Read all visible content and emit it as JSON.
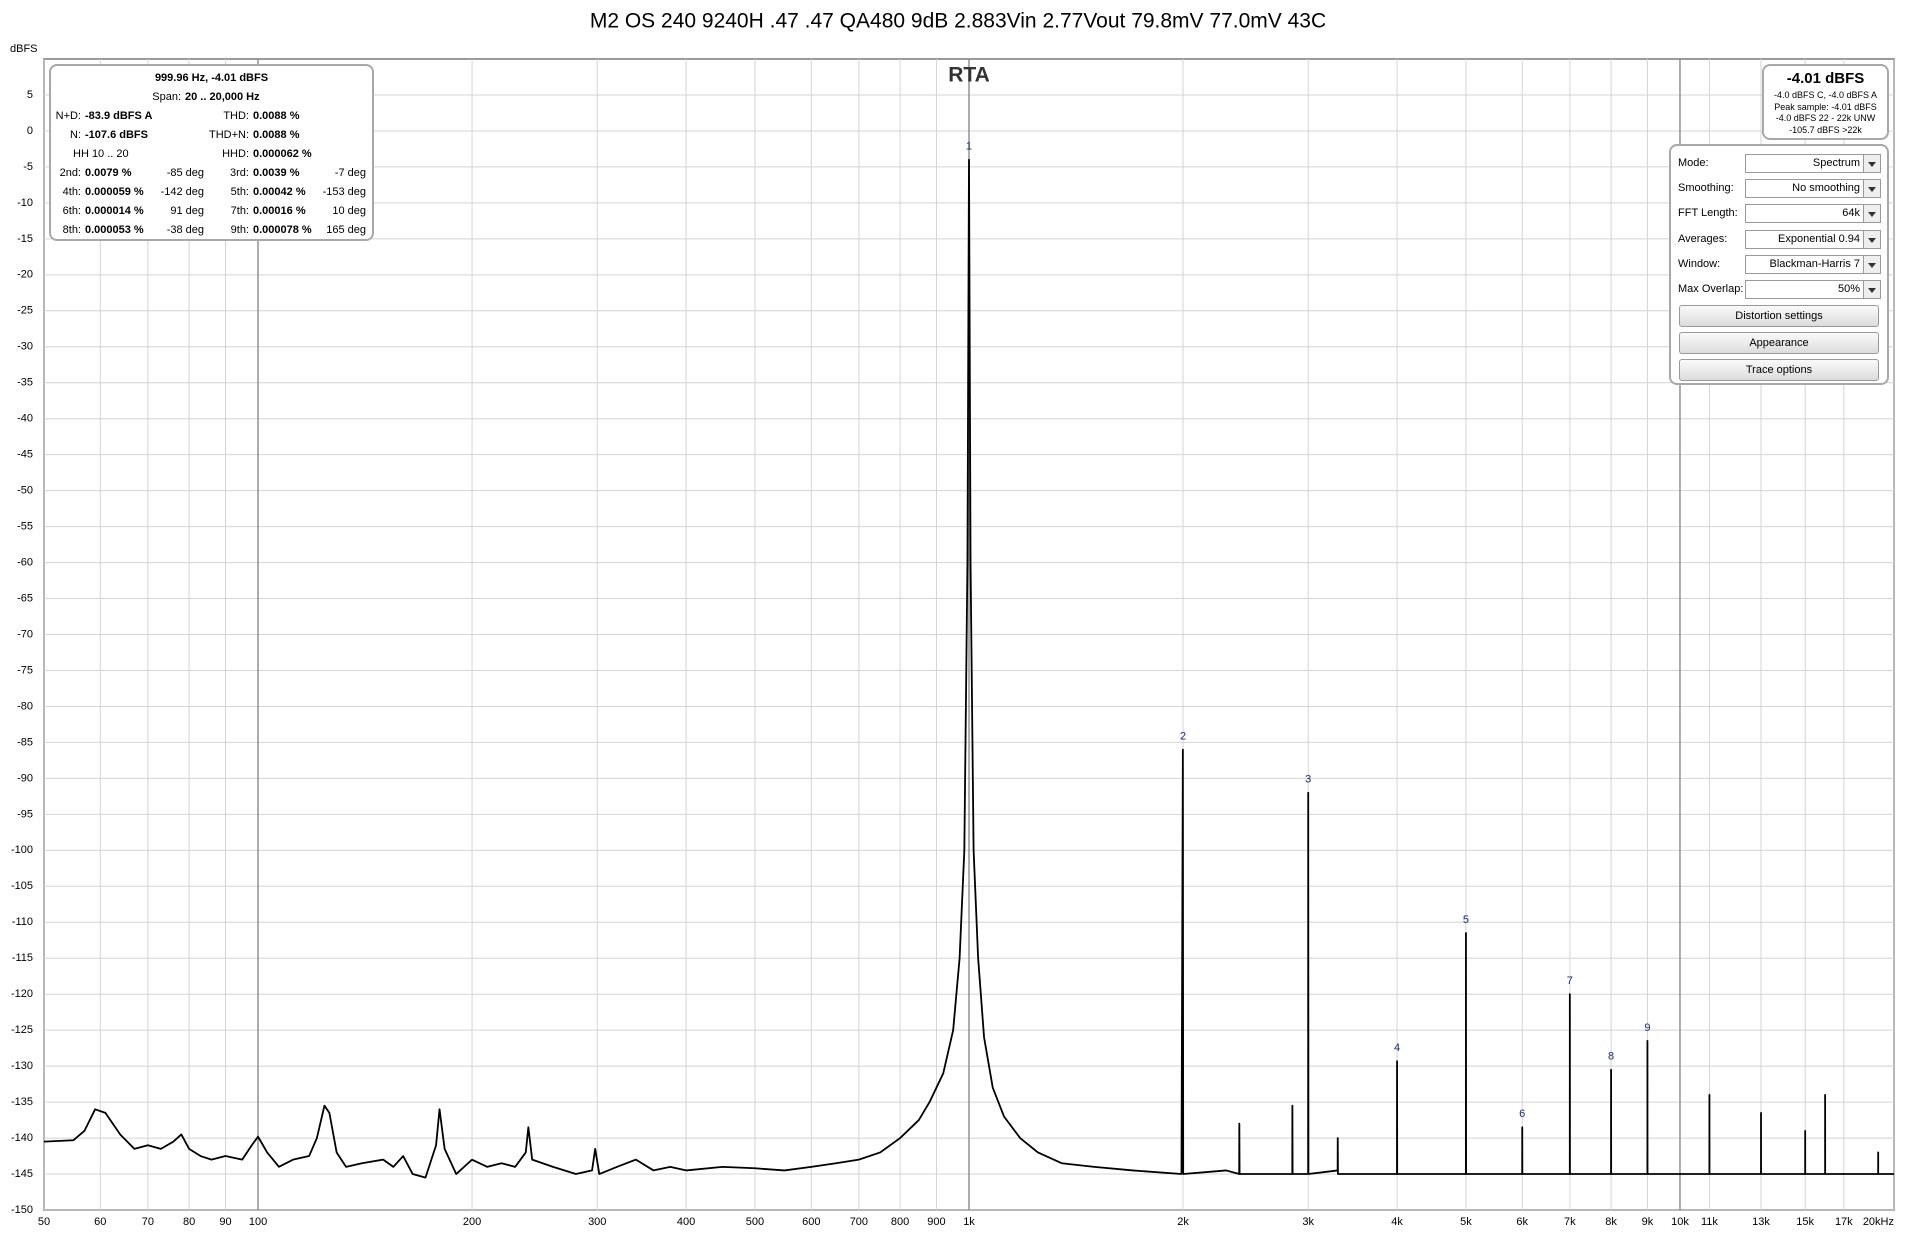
{
  "chart_data": {
    "type": "line",
    "title": "M2 OS 240 9240H .47 .47 QA480 9dB 2.883Vin 2.77Vout 79.8mV 77.0mV 43C",
    "subtitle": "RTA",
    "y_label": "dBFS",
    "x_log": true,
    "grid": true,
    "xlim": [
      50,
      20000
    ],
    "ylim": [
      -150,
      10
    ],
    "xticks": [
      50,
      60,
      70,
      80,
      90,
      100,
      200,
      300,
      400,
      500,
      600,
      700,
      800,
      900,
      {
        "value": 1000,
        "label": "1k"
      },
      {
        "value": 2000,
        "label": "2k"
      },
      {
        "value": 3000,
        "label": "3k"
      },
      {
        "value": 4000,
        "label": "4k"
      },
      {
        "value": 5000,
        "label": "5k"
      },
      {
        "value": 6000,
        "label": "6k"
      },
      {
        "value": 7000,
        "label": "7k"
      },
      {
        "value": 8000,
        "label": "8k"
      },
      {
        "value": 9000,
        "label": "9k"
      },
      {
        "value": 10000,
        "label": "10k"
      },
      {
        "value": 11000,
        "label": "11k"
      },
      {
        "value": 13000,
        "label": "13k"
      },
      {
        "value": 15000,
        "label": "15k"
      },
      {
        "value": 17000,
        "label": "17k"
      },
      {
        "value": 20000,
        "label": "20kHz"
      }
    ],
    "yticks": [
      -150,
      -145,
      -140,
      -135,
      -130,
      -125,
      -120,
      -115,
      -110,
      -105,
      -100,
      -95,
      -90,
      -85,
      -80,
      -75,
      -70,
      -65,
      -60,
      -55,
      -50,
      -45,
      -40,
      -35,
      -30,
      -25,
      -20,
      -15,
      -10,
      -5,
      0,
      5
    ],
    "x": [
      50,
      55,
      57,
      59,
      61,
      64,
      67,
      70,
      73,
      76,
      78,
      80,
      83,
      86,
      90,
      95,
      98,
      100,
      103,
      107,
      112,
      118,
      121,
      124,
      126,
      129,
      133,
      140,
      150,
      155,
      160,
      165,
      172,
      178,
      180,
      183,
      190,
      200,
      210,
      220,
      230,
      238,
      240,
      243,
      260,
      280,
      295,
      298,
      302,
      320,
      340,
      360,
      380,
      400,
      450,
      500,
      550,
      600,
      650,
      700,
      750,
      800,
      850,
      880,
      920,
      950,
      970,
      985,
      995,
      999.96,
      1005,
      1015,
      1030,
      1050,
      1080,
      1120,
      1180,
      1250,
      1350,
      1500,
      1700,
      1990,
      1999,
      2001,
      2300,
      2399,
      2400,
      2402,
      2849,
      2850,
      2852,
      2999,
      3000,
      3002,
      3300,
      3301,
      3303,
      3999,
      4000,
      4002,
      4999,
      5000,
      5002,
      5999,
      6000,
      6002,
      6999,
      7000,
      7002,
      7999,
      8000,
      8002,
      8999,
      9000,
      9002,
      11000,
      11001,
      11003,
      13000,
      13001,
      13003,
      15000,
      15001,
      15003,
      16000,
      16001,
      16003,
      19000,
      19001,
      19003,
      20000
    ],
    "series": [
      {
        "color": "#000000",
        "values": [
          -140.5,
          -140.3,
          -139,
          -136,
          -136.5,
          -139.5,
          -141.5,
          -141,
          -141.5,
          -140.5,
          -139.5,
          -141.5,
          -142.5,
          -143,
          -142.5,
          -143,
          -141,
          -139.8,
          -142,
          -144,
          -143,
          -142.5,
          -140,
          -135.5,
          -136.5,
          -142,
          -144,
          -143.5,
          -143,
          -144,
          -142.5,
          -145,
          -145.5,
          -141,
          -136,
          -141.5,
          -145,
          -143,
          -144,
          -143.5,
          -144,
          -142,
          -138.5,
          -143,
          -144,
          -145,
          -144.5,
          -141.5,
          -145,
          -144,
          -143,
          -144.5,
          -144,
          -144.5,
          -144,
          -144.2,
          -144.5,
          -144,
          -143.5,
          -143,
          -142,
          -140,
          -137.5,
          -135,
          -131,
          -125,
          -115,
          -100,
          -60,
          -4.01,
          -60,
          -100,
          -115,
          -126,
          -133,
          -137,
          -140,
          -142,
          -143.5,
          -144,
          -144.5,
          -145,
          -86,
          -145,
          -144.5,
          -145,
          -138,
          -145,
          -145,
          -135.5,
          -145,
          -145,
          -92,
          -145,
          -144.5,
          -140,
          -145,
          -145,
          -129.3,
          -145,
          -145,
          -111.5,
          -145,
          -145,
          -138.5,
          -145,
          -145,
          -120,
          -145,
          -145,
          -130.5,
          -145,
          -145,
          -126.5,
          -145,
          -145,
          -134,
          -145,
          -145,
          -136.5,
          -145,
          -145,
          -139,
          -145,
          -145,
          -134,
          -145,
          -145,
          -142,
          -145,
          -145
        ]
      }
    ],
    "harmonic_markers": [
      {
        "label": "1",
        "x": 999.96,
        "y": -4.01
      },
      {
        "label": "2",
        "x": 2000,
        "y": -86
      },
      {
        "label": "3",
        "x": 3000,
        "y": -92
      },
      {
        "label": "4",
        "x": 4000,
        "y": -129.3
      },
      {
        "label": "5",
        "x": 5000,
        "y": -111.5
      },
      {
        "label": "6",
        "x": 6000,
        "y": -138.5
      },
      {
        "label": "7",
        "x": 7000,
        "y": -120
      },
      {
        "label": "8",
        "x": 8000,
        "y": -130.5
      },
      {
        "label": "9",
        "x": 9000,
        "y": -126.5
      }
    ]
  },
  "measurement_panel": {
    "header": "999.96 Hz, -4.01 dBFS",
    "span_label": "Span:",
    "span_value": "20 .. 20,000 Hz",
    "rows": [
      [
        {
          "label": "N+D:",
          "value": "-83.9 dBFS A"
        },
        {
          "label": "THD:",
          "value": "0.0088 %"
        }
      ],
      [
        {
          "label": "N:",
          "value": "-107.6 dBFS"
        },
        {
          "label": "THD+N:",
          "value": "0.0088 %"
        }
      ],
      [
        {
          "label": "HH 10 .. 20"
        },
        {
          "label": "HHD:",
          "value": "0.000062 %"
        }
      ],
      [
        {
          "label": "2nd:",
          "value": "0.0079 %",
          "phase": "-85 deg"
        },
        {
          "label": "3rd:",
          "value": "0.0039 %",
          "phase": "-7 deg"
        }
      ],
      [
        {
          "label": "4th:",
          "value": "0.000059 %",
          "phase": "-142 deg"
        },
        {
          "label": "5th:",
          "value": "0.00042 %",
          "phase": "-153 deg"
        }
      ],
      [
        {
          "label": "6th:",
          "value": "0.000014 %",
          "phase": "91 deg"
        },
        {
          "label": "7th:",
          "value": "0.00016 %",
          "phase": "10 deg"
        }
      ],
      [
        {
          "label": "8th:",
          "value": "0.000053 %",
          "phase": "-38 deg"
        },
        {
          "label": "9th:",
          "value": "0.000078 %",
          "phase": "165 deg"
        }
      ]
    ]
  },
  "level_panel": {
    "level": "-4.01 dBFS",
    "lines": [
      "-4.0 dBFS C, -4.0 dBFS A",
      "Peak sample: -4.01 dBFS",
      "-4.0 dBFS 22 - 22k UNW",
      "-105.7 dBFS >22k"
    ]
  },
  "controls_panel": {
    "settings": [
      {
        "label": "Mode:",
        "value": "Spectrum"
      },
      {
        "label": "Smoothing:",
        "value": "No  smoothing"
      },
      {
        "label": "FFT Length:",
        "value": "64k"
      },
      {
        "label": "Averages:",
        "value": "Exponential 0.94"
      },
      {
        "label": "Window:",
        "value": "Blackman-Harris 7"
      },
      {
        "label": "Max Overlap:",
        "value": "50%"
      }
    ],
    "buttons": [
      "Distortion settings",
      "Appearance",
      "Trace options"
    ]
  }
}
